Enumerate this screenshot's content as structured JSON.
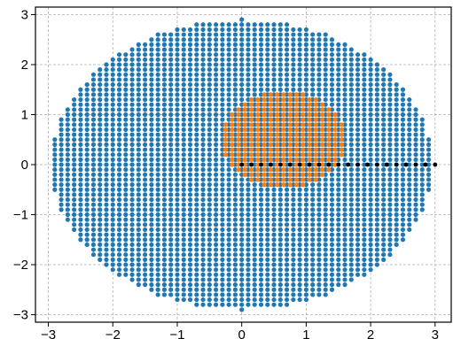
{
  "chart_data": {
    "type": "scatter",
    "title": "",
    "xlabel": "",
    "ylabel": "",
    "xlim": [
      -3.2,
      3.25
    ],
    "ylim": [
      -3.15,
      3.15
    ],
    "grid": true,
    "x_ticks": [
      -3,
      -2,
      -1,
      0,
      1,
      2,
      3
    ],
    "x_tick_labels": [
      "−3",
      "−2",
      "−1",
      "0",
      "1",
      "2",
      "3"
    ],
    "y_ticks": [
      -3,
      -2,
      -1,
      0,
      1,
      2,
      3
    ],
    "y_tick_labels": [
      "−3",
      "−2",
      "−1",
      "0",
      "1",
      "2",
      "3"
    ],
    "series": [
      {
        "shape": "filled ellipse of grid points",
        "color": "#1f77b4",
        "center": [
          0,
          0
        ],
        "radii": [
          2.95,
          2.9
        ],
        "grid_spacing": 0.1
      },
      {
        "shape": "filled ellipse of grid points",
        "color": "#ff7f0e",
        "center": [
          0.65,
          0.5
        ],
        "radii": [
          0.95,
          0.95
        ],
        "grid_spacing": 0.1
      },
      {
        "shape": "points along line",
        "color": "#000000",
        "x": [
          0,
          0.15,
          0.3,
          0.45,
          0.6,
          0.75,
          0.9,
          1.05,
          1.2,
          1.35,
          1.5,
          1.65,
          1.8,
          1.95,
          2.1,
          2.25,
          2.4,
          2.55,
          2.7,
          2.85,
          3.0
        ],
        "y": [
          0,
          0,
          0,
          0,
          0,
          0,
          0,
          0,
          0,
          0,
          0,
          0,
          0,
          0,
          0,
          0,
          0,
          0,
          0,
          0,
          0
        ]
      }
    ]
  }
}
